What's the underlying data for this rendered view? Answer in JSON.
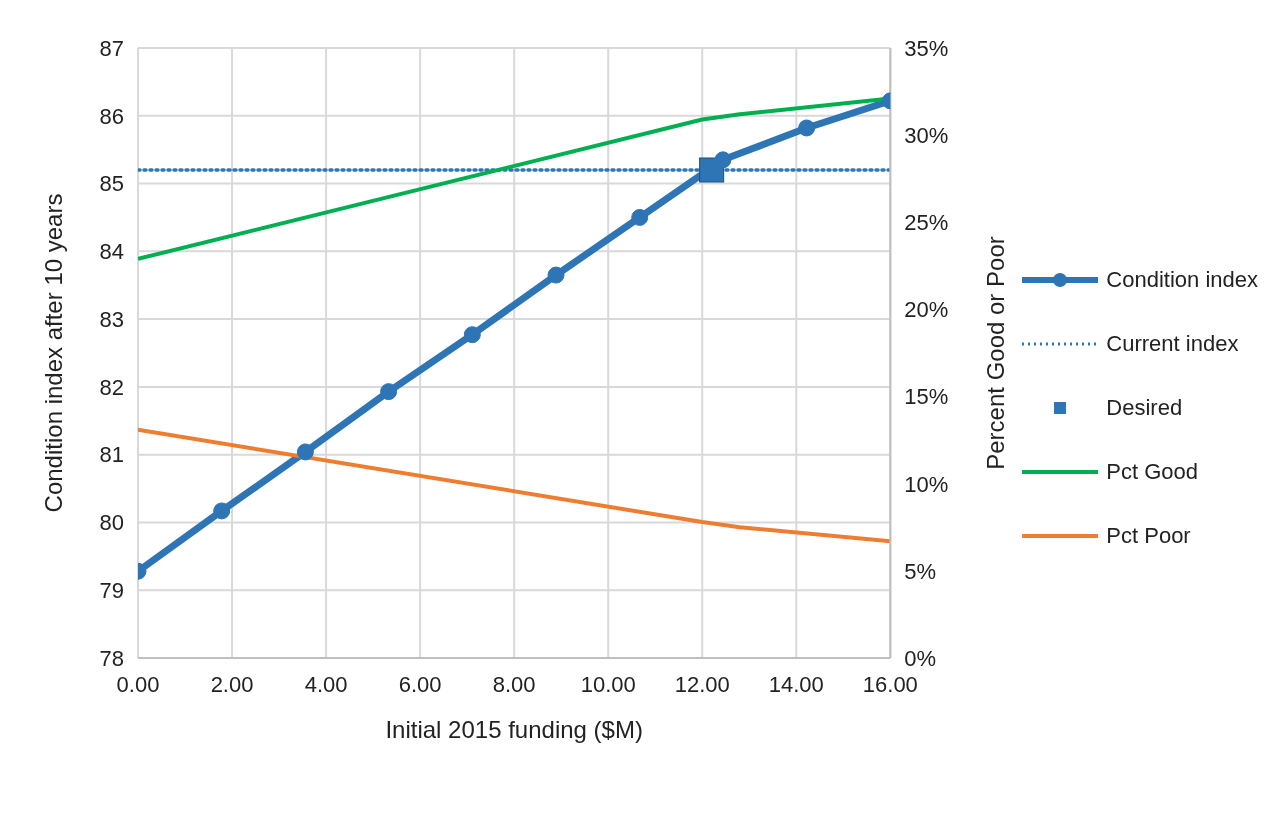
{
  "chart_data": {
    "type": "line",
    "xlabel": "Initial 2015 funding ($M)",
    "ylabel": "Condition index after 10 years",
    "y2label": "Percent Good or Poor",
    "xlim": [
      0,
      16
    ],
    "xticks": [
      {
        "value": 0,
        "label": "0.00"
      },
      {
        "value": 2,
        "label": "2.00"
      },
      {
        "value": 4,
        "label": "4.00"
      },
      {
        "value": 6,
        "label": "6.00"
      },
      {
        "value": 8,
        "label": "8.00"
      },
      {
        "value": 10,
        "label": "10.00"
      },
      {
        "value": 12,
        "label": "12.00"
      },
      {
        "value": 14,
        "label": "14.00"
      },
      {
        "value": 16,
        "label": "16.00"
      }
    ],
    "ylim": [
      78,
      87
    ],
    "yticks": [
      78,
      79,
      80,
      81,
      82,
      83,
      84,
      85,
      86,
      87
    ],
    "y2lim": [
      0,
      35
    ],
    "y2ticks": [
      {
        "value": 0,
        "label": "0%"
      },
      {
        "value": 5,
        "label": "5%"
      },
      {
        "value": 10,
        "label": "10%"
      },
      {
        "value": 15,
        "label": "15%"
      },
      {
        "value": 20,
        "label": "20%"
      },
      {
        "value": 25,
        "label": "25%"
      },
      {
        "value": 30,
        "label": "30%"
      },
      {
        "value": 35,
        "label": "35%"
      }
    ],
    "grid": true,
    "legend": "right",
    "series": [
      {
        "name": "Condition index",
        "color": "#2e75b6",
        "marker": "circle",
        "line_style": "solid",
        "x": [
          0,
          1.78,
          3.56,
          5.33,
          7.11,
          8.89,
          10.67,
          12.44,
          14.22,
          16
        ],
        "values": [
          79.28,
          80.17,
          81.04,
          81.93,
          82.77,
          83.65,
          84.5,
          85.35,
          85.82,
          86.22
        ]
      },
      {
        "name": "Current index",
        "color": "#2e75b6",
        "marker": "none",
        "line_style": "dotted",
        "x": [
          0,
          16
        ],
        "values": [
          85.2,
          85.2
        ]
      },
      {
        "name": "Desired",
        "type": "scatter",
        "color": "#2e75b6",
        "marker": "square",
        "x": [
          12.2
        ],
        "values": [
          85.2
        ]
      },
      {
        "name": "Pct Good",
        "color": "#00b050",
        "marker": "none",
        "line_style": "solid",
        "axis": "y2",
        "x": [
          0,
          12,
          12.8,
          16
        ],
        "values": [
          22.9,
          30.9,
          31.2,
          32.1
        ]
      },
      {
        "name": "Pct Poor",
        "color": "#ed7d31",
        "marker": "none",
        "line_style": "solid",
        "axis": "y2",
        "x": [
          0,
          12,
          12.8,
          16
        ],
        "values": [
          13.1,
          7.8,
          7.5,
          6.7
        ]
      }
    ]
  }
}
